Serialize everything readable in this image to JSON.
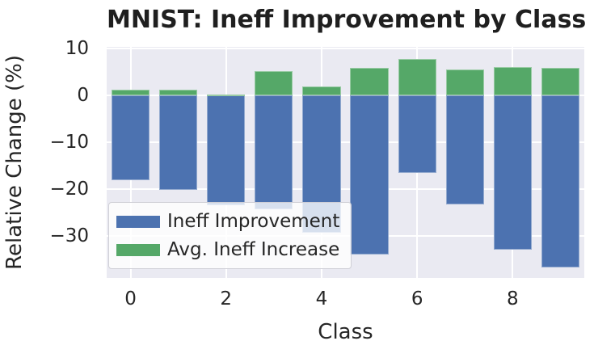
{
  "figure": {
    "background": "#ffffff",
    "text_color": "#262626",
    "plot_background": "#EAEAF2",
    "grid_color": "#ffffff"
  },
  "chart_data": {
    "type": "bar",
    "title": "MNIST: Ineff Improvement by Class",
    "xlabel": "Class",
    "ylabel": "Relative Change (%)",
    "categories": [
      "0",
      "1",
      "2",
      "3",
      "4",
      "5",
      "6",
      "7",
      "8",
      "9"
    ],
    "series": [
      {
        "name": "Ineff Improvement",
        "color": "#4C72B0",
        "values": [
          -18.0,
          -20.1,
          -23.4,
          -24.2,
          -29.3,
          -33.9,
          -16.5,
          -23.2,
          -32.9,
          -36.7
        ]
      },
      {
        "name": "Avg. Ineff Increase",
        "color": "#55A868",
        "values": [
          1.3,
          1.3,
          0.3,
          5.2,
          1.9,
          6.0,
          7.9,
          5.5,
          6.1,
          5.9
        ]
      }
    ],
    "ylim": [
      -38.9,
      10.4
    ],
    "yticks": [
      {
        "v": 10,
        "label": "10"
      },
      {
        "v": 0,
        "label": "0"
      },
      {
        "v": -10,
        "label": "−10"
      },
      {
        "v": -20,
        "label": "−20"
      },
      {
        "v": -30,
        "label": "−30"
      }
    ],
    "xticks": [
      {
        "v": 0,
        "label": "0"
      },
      {
        "v": 2,
        "label": "2"
      },
      {
        "v": 4,
        "label": "4"
      },
      {
        "v": 6,
        "label": "6"
      },
      {
        "v": 8,
        "label": "8"
      }
    ],
    "grid": true,
    "legend_position": "lower left",
    "bar_width": 0.8
  }
}
